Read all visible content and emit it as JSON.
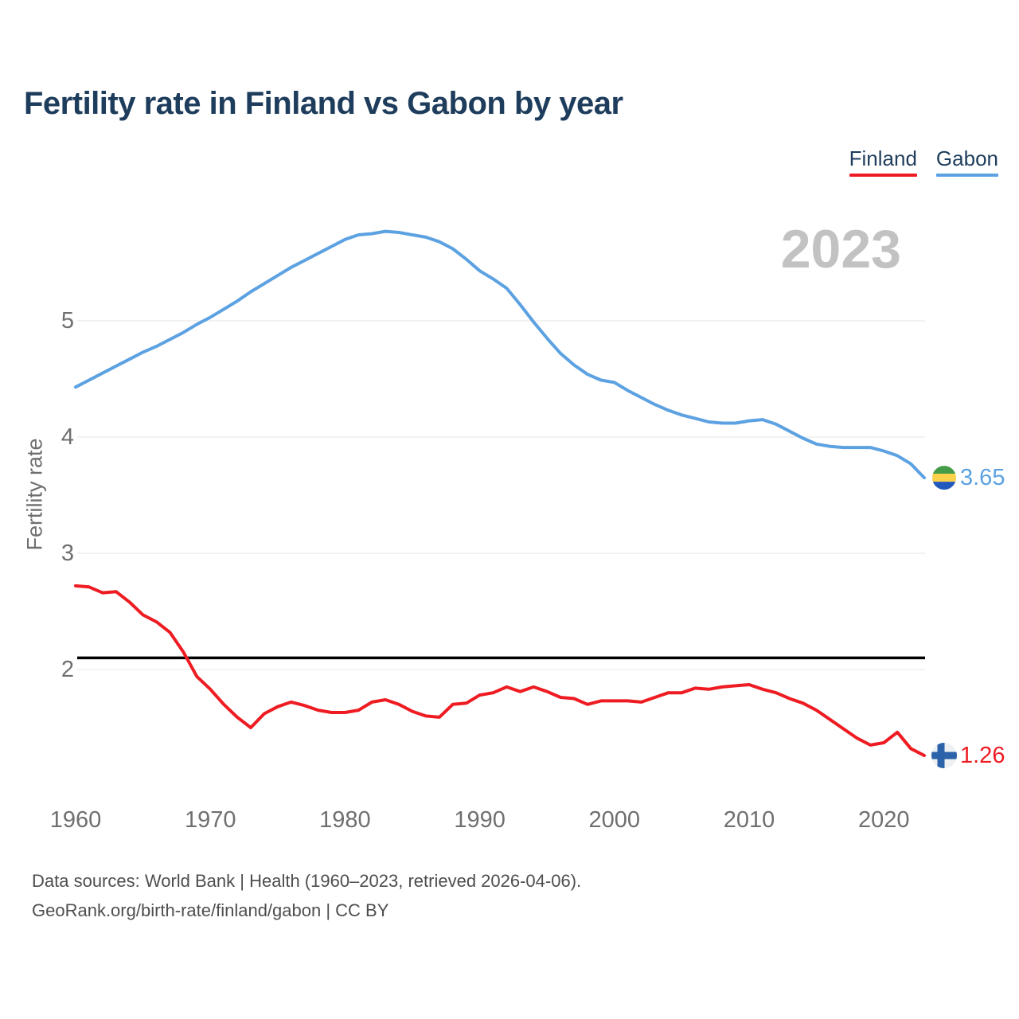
{
  "header": {
    "title": "Fertility rate in Finland vs Gabon by year"
  },
  "legend": {
    "items": [
      {
        "label": "Finland",
        "color": "#ee1c22"
      },
      {
        "label": "Gabon",
        "color": "#5ca1e1"
      }
    ]
  },
  "annotations": {
    "watermark": "2023",
    "end_markers": [
      {
        "series": "Gabon",
        "label": "3.65",
        "value": 3.65,
        "flag": "gabon",
        "label_color": "#5ca1e1"
      },
      {
        "series": "Finland",
        "label": "1.26",
        "value": 1.26,
        "flag": "finland",
        "label_color": "#ee1c22"
      }
    ]
  },
  "footer": {
    "line1": "Data sources: World Bank | Health (1960–2023, retrieved 2026-04-06).",
    "line2": "GeoRank.org/birth-rate/finland/gabon | CC BY"
  },
  "colors": {
    "title": "#1e3d5c",
    "axis_text": "#6f6f6f",
    "gridline": "#ededed",
    "reference_line": "#000000",
    "finland_line": "#ee1c22",
    "gabon_line": "#5ca1e1",
    "gabon_flag": {
      "green": "#449b48",
      "yellow": "#fcd24a",
      "blue": "#2159bd"
    },
    "finland_flag": {
      "bg": "#eef0f2",
      "cross": "#2b62aa"
    }
  },
  "chart_data": {
    "type": "line",
    "title": "Fertility rate in Finland vs Gabon by year",
    "xlabel": "",
    "ylabel": "Fertility rate",
    "x_range": [
      1960,
      2023
    ],
    "ylim": [
      1.0,
      6.0
    ],
    "grid": "horizontal",
    "legend_position": "top-right",
    "xticks": [
      1960,
      1970,
      1980,
      1990,
      2000,
      2010,
      2020
    ],
    "yticks": [
      2,
      3,
      4,
      5
    ],
    "reference_line": {
      "value": 2.1,
      "color": "#000000"
    },
    "years": [
      1960,
      1961,
      1962,
      1963,
      1964,
      1965,
      1966,
      1967,
      1968,
      1969,
      1970,
      1971,
      1972,
      1973,
      1974,
      1975,
      1976,
      1977,
      1978,
      1979,
      1980,
      1981,
      1982,
      1983,
      1984,
      1985,
      1986,
      1987,
      1988,
      1989,
      1990,
      1991,
      1992,
      1993,
      1994,
      1995,
      1996,
      1997,
      1998,
      1999,
      2000,
      2001,
      2002,
      2003,
      2004,
      2005,
      2006,
      2007,
      2008,
      2009,
      2010,
      2011,
      2012,
      2013,
      2014,
      2015,
      2016,
      2017,
      2018,
      2019,
      2020,
      2021,
      2022,
      2023
    ],
    "series": [
      {
        "name": "Gabon",
        "color": "#5ca1e1",
        "end_value": 3.65,
        "values": [
          4.43,
          4.49,
          4.55,
          4.61,
          4.67,
          4.73,
          4.78,
          4.84,
          4.9,
          4.97,
          5.03,
          5.1,
          5.17,
          5.25,
          5.32,
          5.39,
          5.46,
          5.52,
          5.58,
          5.64,
          5.7,
          5.74,
          5.75,
          5.77,
          5.76,
          5.74,
          5.72,
          5.68,
          5.62,
          5.53,
          5.43,
          5.36,
          5.28,
          5.14,
          4.99,
          4.85,
          4.72,
          4.62,
          4.54,
          4.49,
          4.47,
          4.4,
          4.34,
          4.28,
          4.23,
          4.19,
          4.16,
          4.13,
          4.12,
          4.12,
          4.14,
          4.15,
          4.11,
          4.05,
          3.99,
          3.94,
          3.92,
          3.91,
          3.91,
          3.91,
          3.88,
          3.84,
          3.77,
          3.65
        ]
      },
      {
        "name": "Finland",
        "color": "#ee1c22",
        "end_value": 1.26,
        "values": [
          2.72,
          2.71,
          2.66,
          2.67,
          2.58,
          2.47,
          2.41,
          2.32,
          2.15,
          1.94,
          1.83,
          1.7,
          1.59,
          1.5,
          1.62,
          1.68,
          1.72,
          1.69,
          1.65,
          1.63,
          1.63,
          1.65,
          1.72,
          1.74,
          1.7,
          1.64,
          1.6,
          1.59,
          1.7,
          1.71,
          1.78,
          1.8,
          1.85,
          1.81,
          1.85,
          1.81,
          1.76,
          1.75,
          1.7,
          1.73,
          1.73,
          1.73,
          1.72,
          1.76,
          1.8,
          1.8,
          1.84,
          1.83,
          1.85,
          1.86,
          1.87,
          1.83,
          1.8,
          1.75,
          1.71,
          1.65,
          1.57,
          1.49,
          1.41,
          1.35,
          1.37,
          1.46,
          1.32,
          1.26
        ]
      }
    ]
  }
}
